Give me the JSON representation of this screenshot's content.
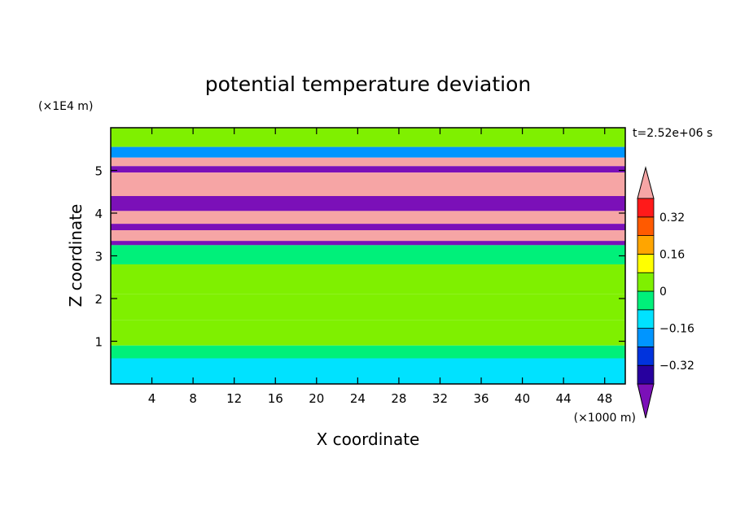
{
  "chart_data": {
    "type": "heatmap",
    "title": "potential temperature deviation",
    "xlabel": "X coordinate",
    "ylabel": "Z coordinate",
    "x_unit": "(×1000 m)",
    "y_unit": "(×1E4 m)",
    "time_label": "t=2.52e+06 s",
    "xlim": [
      0,
      50
    ],
    "ylim": [
      0,
      6
    ],
    "x_ticks": [
      "4",
      "8",
      "12",
      "16",
      "20",
      "24",
      "28",
      "32",
      "36",
      "40",
      "44",
      "48"
    ],
    "y_ticks": [
      "1",
      "2",
      "3",
      "4",
      "5"
    ],
    "colorbar": {
      "levels": [
        -0.4,
        -0.32,
        -0.24,
        -0.16,
        -0.08,
        0,
        0.08,
        0.16,
        0.24,
        0.32,
        0.4
      ],
      "labels": [
        "0.32",
        "0.16",
        "0",
        "−0.16",
        "−0.32"
      ],
      "label_values": [
        0.32,
        0.16,
        0,
        -0.16,
        -0.32
      ],
      "extend": "both"
    },
    "colors": {
      "below_min": "#7b10b8",
      "bins": [
        "#27009e",
        "#0033dd",
        "#0095ff",
        "#00e2ff",
        "#00f07a",
        "#7ff000",
        "#ffff00",
        "#ffa500",
        "#ff5a00",
        "#ff1a1a"
      ],
      "above_max": "#f6a5a5"
    },
    "layers": [
      {
        "zmin": 5.55,
        "zmax": 6.0,
        "value": 0.06
      },
      {
        "zmin": 5.3,
        "zmax": 5.55,
        "value": -0.2
      },
      {
        "zmin": 5.1,
        "zmax": 5.3,
        "value": 0.45
      },
      {
        "zmin": 4.95,
        "zmax": 5.1,
        "value": -0.45
      },
      {
        "zmin": 4.4,
        "zmax": 4.95,
        "value": 0.45
      },
      {
        "zmin": 4.05,
        "zmax": 4.4,
        "value": -0.45
      },
      {
        "zmin": 3.75,
        "zmax": 4.05,
        "value": 0.45
      },
      {
        "zmin": 3.6,
        "zmax": 3.75,
        "value": -0.45
      },
      {
        "zmin": 3.35,
        "zmax": 3.6,
        "value": 0.45
      },
      {
        "zmin": 3.25,
        "zmax": 3.35,
        "value": -0.45
      },
      {
        "zmin": 2.8,
        "zmax": 3.25,
        "value": -0.04
      },
      {
        "zmin": 2.1,
        "zmax": 2.8,
        "value": 0.03
      },
      {
        "zmin": 1.5,
        "zmax": 2.1,
        "value": 0.01
      },
      {
        "zmin": 0.9,
        "zmax": 1.5,
        "value": 0.04
      },
      {
        "zmin": 0.6,
        "zmax": 0.9,
        "value": -0.05
      },
      {
        "zmin": 0.0,
        "zmax": 0.6,
        "value": -0.1
      }
    ]
  }
}
